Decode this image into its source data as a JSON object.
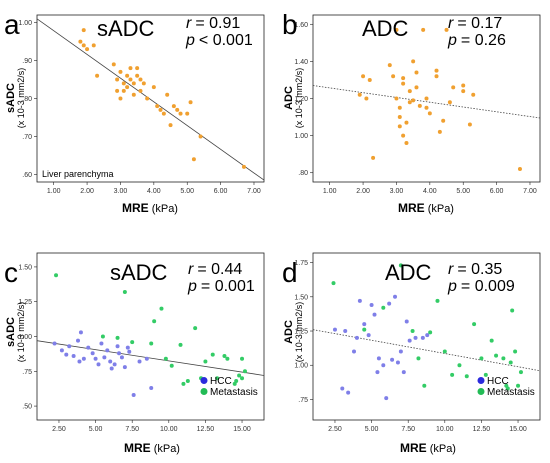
{
  "chart_data": [
    {
      "type": "scatter",
      "panel_letter": "a",
      "title": "sADC",
      "stat_r_label": "r",
      "stat_r_value": "= 0.91",
      "stat_p_label": "p",
      "stat_p_value": "< 0.001",
      "xlabel_bold": "MRE",
      "xlabel_unit": "(kPa)",
      "ylabel_bold": "sADC",
      "ylabel_unit": "(x 10-3 mm2/s)",
      "annotation": "Liver parenchyma",
      "xlim": [
        0.5,
        7.3
      ],
      "ylim": [
        0.58,
        1.02
      ],
      "x_ticks": [
        1,
        2,
        3,
        4,
        5,
        6,
        7
      ],
      "x_tick_labels": [
        "1.00",
        "2.00",
        "3.00",
        "4.00",
        "5.00",
        "6.00",
        "7.00"
      ],
      "y_ticks": [
        0.6,
        0.7,
        0.8,
        0.9,
        1.0
      ],
      "y_tick_labels": [
        ".60",
        ".70",
        ".80",
        ".90",
        "1.00"
      ],
      "trend": {
        "x": [
          0.5,
          7.3
        ],
        "y": [
          1.01,
          0.585
        ],
        "style": "solid"
      },
      "grid": false,
      "series": [
        {
          "color": "#f0a030",
          "points": [
            [
              1.8,
              0.95
            ],
            [
              1.9,
              0.94
            ],
            [
              2.0,
              0.93
            ],
            [
              2.2,
              0.94
            ],
            [
              2.3,
              0.86
            ],
            [
              1.9,
              0.98
            ],
            [
              2.8,
              0.89
            ],
            [
              2.9,
              0.85
            ],
            [
              3.0,
              0.87
            ],
            [
              3.1,
              0.84
            ],
            [
              3.1,
              0.82
            ],
            [
              3.2,
              0.86
            ],
            [
              3.2,
              0.83
            ],
            [
              3.3,
              0.88
            ],
            [
              3.3,
              0.85
            ],
            [
              3.4,
              0.84
            ],
            [
              3.4,
              0.81
            ],
            [
              3.5,
              0.88
            ],
            [
              3.5,
              0.86
            ],
            [
              3.6,
              0.85
            ],
            [
              3.6,
              0.82
            ],
            [
              3.7,
              0.84
            ],
            [
              3.0,
              0.8
            ],
            [
              2.9,
              0.82
            ],
            [
              3.8,
              0.8
            ],
            [
              4.0,
              0.83
            ],
            [
              4.1,
              0.78
            ],
            [
              4.2,
              0.77
            ],
            [
              4.3,
              0.76
            ],
            [
              4.4,
              0.81
            ],
            [
              4.5,
              0.73
            ],
            [
              4.6,
              0.78
            ],
            [
              4.7,
              0.77
            ],
            [
              4.8,
              0.76
            ],
            [
              5.0,
              0.76
            ],
            [
              5.1,
              0.79
            ],
            [
              5.2,
              0.64
            ],
            [
              5.4,
              0.7
            ],
            [
              6.7,
              0.62
            ]
          ]
        }
      ]
    },
    {
      "type": "scatter",
      "panel_letter": "b",
      "title": "ADC",
      "stat_r_label": "r",
      "stat_r_value": "= 0.17",
      "stat_p_label": "p",
      "stat_p_value": "= 0.26",
      "xlabel_bold": "MRE",
      "xlabel_unit": "(kPa)",
      "ylabel_bold": "ADC",
      "ylabel_unit": "(x 10-3 mm2/s)",
      "xlim": [
        0.5,
        7.3
      ],
      "ylim": [
        0.75,
        1.65
      ],
      "x_ticks": [
        1,
        2,
        3,
        4,
        5,
        6,
        7
      ],
      "x_tick_labels": [
        "1.00",
        "2.00",
        "3.00",
        "4.00",
        "5.00",
        "6.00",
        "7.00"
      ],
      "y_ticks": [
        0.8,
        1.0,
        1.2,
        1.4,
        1.6
      ],
      "y_tick_labels": [
        ".80",
        "1.00",
        "1.20",
        "1.40",
        "1.60"
      ],
      "trend": {
        "x": [
          0.5,
          7.3
        ],
        "y": [
          1.27,
          1.095
        ],
        "style": "dotted"
      },
      "grid": false,
      "series": [
        {
          "color": "#f0a030",
          "points": [
            [
              1.9,
              1.22
            ],
            [
              2.1,
              1.2
            ],
            [
              2.2,
              1.3
            ],
            [
              2.0,
              1.32
            ],
            [
              2.3,
              0.88
            ],
            [
              2.8,
              1.38
            ],
            [
              2.9,
              1.32
            ],
            [
              3.0,
              1.57
            ],
            [
              3.0,
              1.2
            ],
            [
              3.1,
              1.15
            ],
            [
              3.1,
              1.1
            ],
            [
              3.1,
              1.05
            ],
            [
              3.2,
              1.31
            ],
            [
              3.2,
              1.28
            ],
            [
              3.2,
              1.0
            ],
            [
              3.3,
              0.96
            ],
            [
              3.3,
              1.07
            ],
            [
              3.4,
              1.18
            ],
            [
              3.4,
              1.24
            ],
            [
              3.5,
              1.4
            ],
            [
              3.5,
              1.19
            ],
            [
              3.6,
              1.26
            ],
            [
              3.6,
              1.34
            ],
            [
              3.7,
              1.16
            ],
            [
              3.8,
              1.57
            ],
            [
              3.9,
              1.2
            ],
            [
              3.9,
              1.15
            ],
            [
              4.0,
              1.12
            ],
            [
              4.2,
              1.35
            ],
            [
              4.2,
              1.32
            ],
            [
              4.3,
              1.02
            ],
            [
              4.4,
              1.08
            ],
            [
              4.5,
              1.57
            ],
            [
              4.6,
              1.18
            ],
            [
              4.7,
              1.26
            ],
            [
              5.0,
              1.27
            ],
            [
              5.0,
              1.24
            ],
            [
              5.2,
              1.06
            ],
            [
              5.3,
              1.22
            ],
            [
              6.7,
              0.82
            ]
          ]
        }
      ]
    },
    {
      "type": "scatter",
      "panel_letter": "c",
      "title": "sADC",
      "stat_r_label": "r",
      "stat_r_value": "= 0.44",
      "stat_p_label": "p",
      "stat_p_value": "= 0.001",
      "xlabel_bold": "MRE",
      "xlabel_unit": "(kPa)",
      "ylabel_bold": "sADC",
      "ylabel_unit": "(x 10-3 mm2/s)",
      "xlim": [
        1.0,
        16.5
      ],
      "ylim": [
        0.4,
        1.6
      ],
      "x_ticks": [
        2.5,
        5,
        7.5,
        10,
        12.5,
        15
      ],
      "x_tick_labels": [
        "2.50",
        "5.00",
        "7.50",
        "10.00",
        "12.50",
        "15.00"
      ],
      "y_ticks": [
        0.5,
        0.75,
        1.0,
        1.25,
        1.5
      ],
      "y_tick_labels": [
        ".50",
        ".75",
        "1.00",
        "1.25",
        "1.50"
      ],
      "trend": {
        "x": [
          1.0,
          16.5
        ],
        "y": [
          0.97,
          0.72
        ],
        "style": "solid"
      },
      "grid": false,
      "legend": {
        "position": "bottom-right",
        "entries": [
          {
            "name": "HCC",
            "color": "#2b2bdd"
          },
          {
            "name": "Metastasis",
            "color": "#22bb55"
          }
        ]
      },
      "series": [
        {
          "name": "HCC",
          "color": "#7f7fe8",
          "points": [
            [
              2.2,
              0.95
            ],
            [
              2.7,
              0.9
            ],
            [
              3.0,
              0.87
            ],
            [
              3.2,
              0.93
            ],
            [
              3.5,
              0.86
            ],
            [
              3.8,
              0.97
            ],
            [
              3.9,
              0.82
            ],
            [
              4.0,
              1.03
            ],
            [
              4.2,
              0.84
            ],
            [
              4.5,
              0.92
            ],
            [
              4.8,
              0.88
            ],
            [
              5.0,
              0.84
            ],
            [
              5.2,
              0.8
            ],
            [
              5.4,
              0.95
            ],
            [
              5.6,
              0.85
            ],
            [
              5.8,
              0.9
            ],
            [
              6.0,
              0.82
            ],
            [
              6.1,
              0.77
            ],
            [
              6.3,
              0.8
            ],
            [
              6.5,
              0.93
            ],
            [
              6.6,
              0.88
            ],
            [
              6.8,
              0.85
            ],
            [
              7.0,
              0.78
            ],
            [
              7.2,
              0.92
            ],
            [
              7.3,
              0.89
            ],
            [
              7.6,
              0.58
            ],
            [
              8.0,
              0.82
            ],
            [
              8.5,
              0.84
            ],
            [
              8.8,
              0.63
            ]
          ]
        },
        {
          "name": "Metastasis",
          "color": "#33cc66",
          "points": [
            [
              2.3,
              1.44
            ],
            [
              5.5,
              1.0
            ],
            [
              6.5,
              0.99
            ],
            [
              7.0,
              1.32
            ],
            [
              7.5,
              0.96
            ],
            [
              8.8,
              0.95
            ],
            [
              9.0,
              1.11
            ],
            [
              9.5,
              1.2
            ],
            [
              9.8,
              0.84
            ],
            [
              10.2,
              0.79
            ],
            [
              10.8,
              0.94
            ],
            [
              11.0,
              0.66
            ],
            [
              11.3,
              0.68
            ],
            [
              11.8,
              1.06
            ],
            [
              12.2,
              0.7
            ],
            [
              12.5,
              0.82
            ],
            [
              13.0,
              0.87
            ],
            [
              13.3,
              0.7
            ],
            [
              13.8,
              0.86
            ],
            [
              14.0,
              0.84
            ],
            [
              14.5,
              0.66
            ],
            [
              14.6,
              0.68
            ],
            [
              14.8,
              0.72
            ],
            [
              15.0,
              0.84
            ],
            [
              15.2,
              0.75
            ],
            [
              15.0,
              0.7
            ]
          ]
        }
      ]
    },
    {
      "type": "scatter",
      "panel_letter": "d",
      "title": "ADC",
      "stat_r_label": "r",
      "stat_r_value": "= 0.35",
      "stat_p_label": "p",
      "stat_p_value": "= 0.009",
      "xlabel_bold": "MRE",
      "xlabel_unit": "(kPa)",
      "ylabel_bold": "ADC",
      "ylabel_unit": "(x 10-3 mm2/s)",
      "xlim": [
        1.0,
        16.5
      ],
      "ylim": [
        0.6,
        1.82
      ],
      "x_ticks": [
        2.5,
        5,
        7.5,
        10,
        12.5,
        15
      ],
      "x_tick_labels": [
        "2.50",
        "5.00",
        "7.50",
        "10.00",
        "12.50",
        "15.00"
      ],
      "y_ticks": [
        0.75,
        1.0,
        1.25,
        1.5,
        1.75
      ],
      "y_tick_labels": [
        ".75",
        "1.00",
        "1.25",
        "1.50",
        "1.75"
      ],
      "trend": {
        "x": [
          1.0,
          16.5
        ],
        "y": [
          1.26,
          0.96
        ],
        "style": "dotted"
      },
      "grid": false,
      "legend": {
        "position": "bottom-right",
        "entries": [
          {
            "name": "HCC",
            "color": "#2b2bdd"
          },
          {
            "name": "Metastasis",
            "color": "#22bb55"
          }
        ]
      },
      "series": [
        {
          "name": "HCC",
          "color": "#7f7fe8",
          "points": [
            [
              2.5,
              1.26
            ],
            [
              3.0,
              0.83
            ],
            [
              3.2,
              1.25
            ],
            [
              3.4,
              0.8
            ],
            [
              3.8,
              1.1
            ],
            [
              4.0,
              1.2
            ],
            [
              4.2,
              1.47
            ],
            [
              4.5,
              1.3
            ],
            [
              4.8,
              1.22
            ],
            [
              5.0,
              1.44
            ],
            [
              5.2,
              1.37
            ],
            [
              5.4,
              0.95
            ],
            [
              5.5,
              1.05
            ],
            [
              5.8,
              1.0
            ],
            [
              6.0,
              0.76
            ],
            [
              6.2,
              1.45
            ],
            [
              6.4,
              1.04
            ],
            [
              6.6,
              1.5
            ],
            [
              6.8,
              1.02
            ],
            [
              7.0,
              1.1
            ],
            [
              7.2,
              0.95
            ],
            [
              7.4,
              1.32
            ],
            [
              7.6,
              1.18
            ],
            [
              8.0,
              1.2
            ],
            [
              8.5,
              1.2
            ],
            [
              8.8,
              1.22
            ]
          ]
        },
        {
          "name": "Metastasis",
          "color": "#33cc66",
          "points": [
            [
              2.4,
              1.6
            ],
            [
              4.5,
              1.26
            ],
            [
              5.8,
              1.42
            ],
            [
              7.0,
              1.73
            ],
            [
              7.8,
              1.25
            ],
            [
              8.2,
              1.05
            ],
            [
              8.6,
              0.85
            ],
            [
              9.0,
              1.24
            ],
            [
              9.5,
              1.47
            ],
            [
              10.0,
              1.1
            ],
            [
              10.5,
              0.93
            ],
            [
              11.0,
              1.0
            ],
            [
              11.5,
              0.92
            ],
            [
              12.0,
              1.3
            ],
            [
              12.5,
              1.05
            ],
            [
              12.8,
              0.93
            ],
            [
              13.2,
              1.18
            ],
            [
              13.5,
              1.07
            ],
            [
              14.0,
              1.05
            ],
            [
              14.2,
              0.85
            ],
            [
              14.5,
              1.02
            ],
            [
              14.8,
              1.1
            ],
            [
              15.0,
              0.85
            ],
            [
              15.2,
              0.95
            ],
            [
              14.6,
              1.4
            ],
            [
              14.3,
              0.83
            ]
          ]
        }
      ]
    }
  ]
}
